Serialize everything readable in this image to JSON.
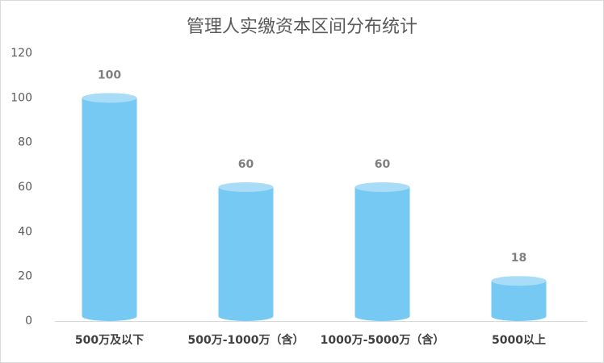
{
  "chart_data": {
    "type": "cylinder-bar",
    "title": "管理人实缴资本区间分布统计",
    "categories": [
      "500万及以下",
      "500万-1000万（含）",
      "1000万-5000万（含）",
      "5000以上"
    ],
    "values": [
      100,
      60,
      60,
      18
    ],
    "color": "#75c9f2",
    "top_color": "#a9ddf7",
    "ylim": [
      0,
      120
    ],
    "yticks": [
      0,
      20,
      40,
      60,
      80,
      100,
      120
    ],
    "grid": false
  }
}
